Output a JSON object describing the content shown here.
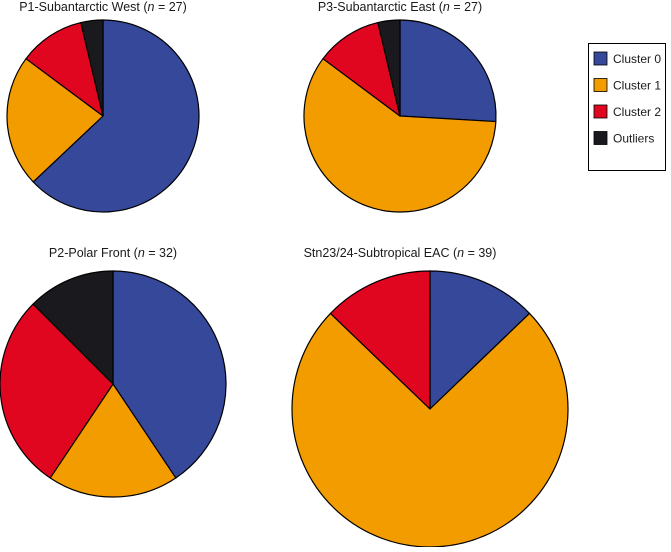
{
  "chart_data": [
    {
      "type": "pie",
      "title_prefix": "P1-Subantarctic West (",
      "title_n_label": "n",
      "title_suffix": " = 27)",
      "categories": [
        "Cluster 0",
        "Cluster 1",
        "Cluster 2",
        "Outliers"
      ],
      "values": [
        17,
        6,
        3,
        1
      ]
    },
    {
      "type": "pie",
      "title_prefix": "P3-Subantarctic East (",
      "title_n_label": "n",
      "title_suffix": " = 27)",
      "categories": [
        "Cluster 0",
        "Cluster 1",
        "Cluster 2",
        "Outliers"
      ],
      "values": [
        7,
        16,
        3,
        1
      ]
    },
    {
      "type": "pie",
      "title_prefix": "P2-Polar Front (",
      "title_n_label": "n",
      "title_suffix": " = 32)",
      "categories": [
        "Cluster 0",
        "Cluster 1",
        "Cluster 2",
        "Outliers"
      ],
      "values": [
        13,
        6,
        9,
        4
      ]
    },
    {
      "type": "pie",
      "title_prefix": "Stn23/24-Subtropical EAC (",
      "title_n_label": "n",
      "title_suffix": " = 39)",
      "categories": [
        "Cluster 0",
        "Cluster 1",
        "Cluster 2",
        "Outliers"
      ],
      "values": [
        5,
        29,
        5,
        0
      ]
    }
  ],
  "legend": {
    "placement": "top-right",
    "items": [
      {
        "label": "Cluster 0",
        "color": "#35489a"
      },
      {
        "label": "Cluster 1",
        "color": "#f39c00"
      },
      {
        "label": "Cluster 2",
        "color": "#e1061f"
      },
      {
        "label": "Outliers",
        "color": "#1a191d"
      }
    ]
  }
}
